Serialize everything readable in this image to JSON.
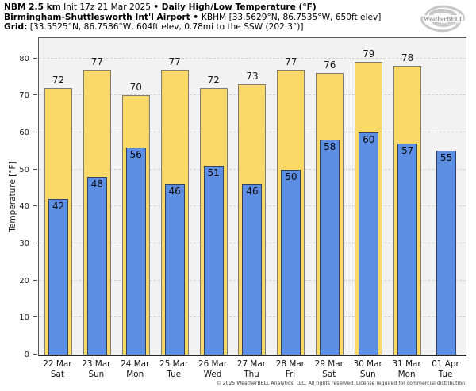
{
  "header": {
    "model": "NBM 2.5 km",
    "init": " Init 17z 21 Mar 2025 ",
    "sep1": "• ",
    "product": "Daily High/Low Temperature (°F)",
    "station_name": "Birmingham-Shuttlesworth Int'l Airport",
    "sep2": " • ",
    "station_info": "KBHM [33.5629°N, 86.7535°W, 650ft elev]",
    "grid_label": "Grid:",
    "grid_info": " [33.5525°N, 86.7586°W, 604ft elev, 0.78mi to the SSW (202.3°)]"
  },
  "logo": {
    "text": "WeatherBELL"
  },
  "chart_data": {
    "type": "bar",
    "title": "Daily High/Low Temperature (°F)",
    "ylabel": "Temperature [°F]",
    "ylim": [
      0,
      85.5
    ],
    "yticks": [
      0,
      10,
      20,
      30,
      40,
      50,
      60,
      70,
      80
    ],
    "grid": "horizontal dashed",
    "legend": "none",
    "categories": [
      {
        "date": "22 Mar",
        "dow": "Sat"
      },
      {
        "date": "23 Mar",
        "dow": "Sun"
      },
      {
        "date": "24 Mar",
        "dow": "Mon"
      },
      {
        "date": "25 Mar",
        "dow": "Tue"
      },
      {
        "date": "26 Mar",
        "dow": "Wed"
      },
      {
        "date": "27 Mar",
        "dow": "Thu"
      },
      {
        "date": "28 Mar",
        "dow": "Fri"
      },
      {
        "date": "29 Mar",
        "dow": "Sat"
      },
      {
        "date": "30 Mar",
        "dow": "Sun"
      },
      {
        "date": "31 Mar",
        "dow": "Mon"
      },
      {
        "date": "01 Apr",
        "dow": "Tue"
      }
    ],
    "series": [
      {
        "name": "Daily High",
        "color": "#fbd968",
        "values": [
          72,
          77,
          70,
          77,
          72,
          73,
          77,
          76,
          79,
          78,
          null
        ]
      },
      {
        "name": "Daily Low",
        "color": "#5c8ee4",
        "values": [
          42,
          48,
          56,
          46,
          51,
          46,
          50,
          58,
          60,
          57,
          55
        ]
      }
    ]
  },
  "colors": {
    "plot_bg": "#f2f2f2",
    "high_fill": "#fbd968",
    "high_border": "#807e72",
    "low_fill": "#5c8ee4",
    "low_border": "#31415f",
    "gridline": "#d2d2cf"
  },
  "footer": "© 2025 WeatherBELL Analytics, LLC. All rights reserved. License required for commercial distribution."
}
